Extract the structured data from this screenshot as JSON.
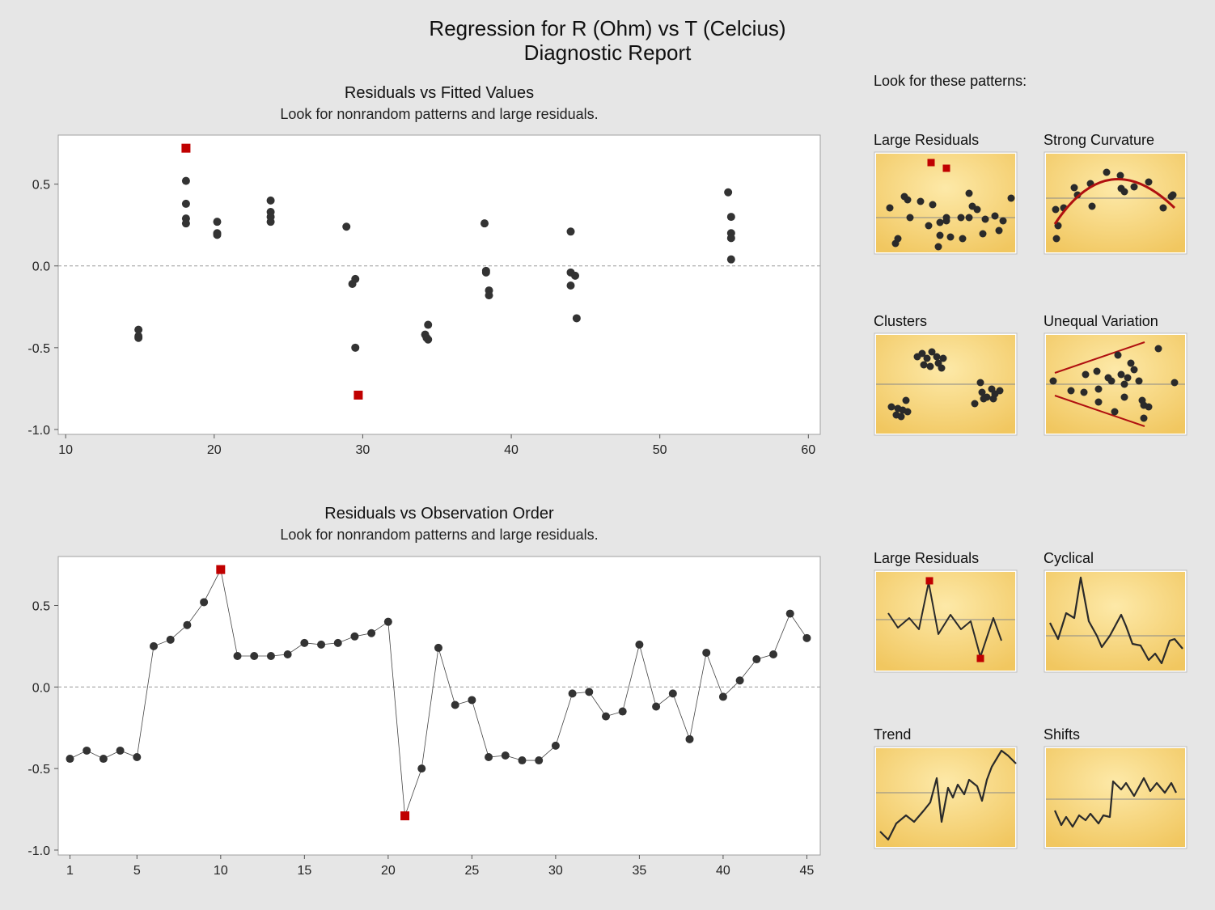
{
  "report": {
    "title": "Regression for R (Ohm) vs T (Celcius)",
    "subtitle": "Diagnostic Report"
  },
  "colors": {
    "point": "#333333",
    "highlight": "#c00000",
    "thumb_bg": "#f5d27a",
    "trend_line": "#b01010"
  },
  "chart_data": [
    {
      "type": "scatter",
      "title": "Residuals vs Fitted Values",
      "subtitle": "Look for nonrandom patterns and large residuals.",
      "xlabel": "",
      "ylabel": "",
      "xlim": [
        9.5,
        60.8
      ],
      "ylim": [
        -1.03,
        0.8
      ],
      "xticks": [
        10,
        20,
        30,
        40,
        50,
        60
      ],
      "yticks": [
        -1.0,
        -0.5,
        0.0,
        0.5
      ],
      "ytick_labels": [
        "-1.0",
        "-0.5",
        "0.0",
        "0.5"
      ],
      "reference_line": 0.0,
      "grid": false,
      "points": [
        {
          "x": 14.9,
          "y": -0.39
        },
        {
          "x": 14.9,
          "y": -0.43
        },
        {
          "x": 14.9,
          "y": -0.44
        },
        {
          "x": 18.1,
          "y": 0.52
        },
        {
          "x": 18.1,
          "y": 0.38
        },
        {
          "x": 18.1,
          "y": 0.29
        },
        {
          "x": 18.1,
          "y": 0.26
        },
        {
          "x": 20.2,
          "y": 0.27
        },
        {
          "x": 20.2,
          "y": 0.2
        },
        {
          "x": 20.2,
          "y": 0.19
        },
        {
          "x": 23.8,
          "y": 0.4
        },
        {
          "x": 23.8,
          "y": 0.33
        },
        {
          "x": 23.8,
          "y": 0.3
        },
        {
          "x": 23.8,
          "y": 0.27
        },
        {
          "x": 28.9,
          "y": 0.24
        },
        {
          "x": 29.3,
          "y": -0.11
        },
        {
          "x": 29.5,
          "y": -0.08
        },
        {
          "x": 29.5,
          "y": -0.5
        },
        {
          "x": 34.2,
          "y": -0.42
        },
        {
          "x": 34.3,
          "y": -0.44
        },
        {
          "x": 34.4,
          "y": -0.45
        },
        {
          "x": 34.4,
          "y": -0.36
        },
        {
          "x": 38.2,
          "y": 0.26
        },
        {
          "x": 38.3,
          "y": -0.03
        },
        {
          "x": 38.3,
          "y": -0.04
        },
        {
          "x": 38.5,
          "y": -0.15
        },
        {
          "x": 38.5,
          "y": -0.18
        },
        {
          "x": 44.0,
          "y": 0.21
        },
        {
          "x": 44.0,
          "y": -0.04
        },
        {
          "x": 44.0,
          "y": -0.12
        },
        {
          "x": 44.3,
          "y": -0.06
        },
        {
          "x": 44.4,
          "y": -0.32
        },
        {
          "x": 54.6,
          "y": 0.45
        },
        {
          "x": 54.8,
          "y": 0.3
        },
        {
          "x": 54.8,
          "y": 0.2
        },
        {
          "x": 54.8,
          "y": 0.17
        },
        {
          "x": 54.8,
          "y": 0.04
        }
      ],
      "highlights": [
        {
          "x": 18.1,
          "y": 0.72
        },
        {
          "x": 29.7,
          "y": -0.79
        }
      ]
    },
    {
      "type": "line",
      "title": "Residuals vs Observation Order",
      "subtitle": "Look for nonrandom patterns and large residuals.",
      "xlabel": "",
      "ylabel": "",
      "xlim": [
        0.3,
        45.8
      ],
      "ylim": [
        -1.03,
        0.8
      ],
      "xticks": [
        1,
        5,
        10,
        15,
        20,
        25,
        30,
        35,
        40,
        45
      ],
      "yticks": [
        -1.0,
        -0.5,
        0.0,
        0.5
      ],
      "ytick_labels": [
        "-1.0",
        "-0.5",
        "0.0",
        "0.5"
      ],
      "reference_line": 0.0,
      "grid": false,
      "values": [
        -0.44,
        -0.39,
        -0.44,
        -0.39,
        -0.43,
        0.25,
        0.29,
        0.38,
        0.52,
        0.72,
        0.19,
        0.19,
        0.19,
        0.2,
        0.27,
        0.26,
        0.27,
        0.31,
        0.33,
        0.4,
        -0.79,
        -0.5,
        0.24,
        -0.11,
        -0.08,
        -0.43,
        -0.42,
        -0.45,
        -0.45,
        -0.36,
        -0.04,
        -0.03,
        -0.18,
        -0.15,
        0.26,
        -0.12,
        -0.04,
        -0.32,
        0.21,
        -0.06,
        0.04,
        0.17,
        0.2,
        0.45,
        0.3
      ],
      "highlight_indices": [
        10,
        21
      ]
    }
  ],
  "patterns": {
    "heading": "Look for these patterns:",
    "fitted": [
      {
        "label": "Large Residuals",
        "kind": "scatter-large"
      },
      {
        "label": "Strong Curvature",
        "kind": "scatter-curve"
      },
      {
        "label": "Clusters",
        "kind": "scatter-clusters"
      },
      {
        "label": "Unequal Variation",
        "kind": "scatter-funnel"
      }
    ],
    "order": [
      {
        "label": "Large Residuals",
        "kind": "line-large"
      },
      {
        "label": "Cyclical",
        "kind": "line-cyclical"
      },
      {
        "label": "Trend",
        "kind": "line-trend"
      },
      {
        "label": "Shifts",
        "kind": "line-shifts"
      }
    ]
  }
}
